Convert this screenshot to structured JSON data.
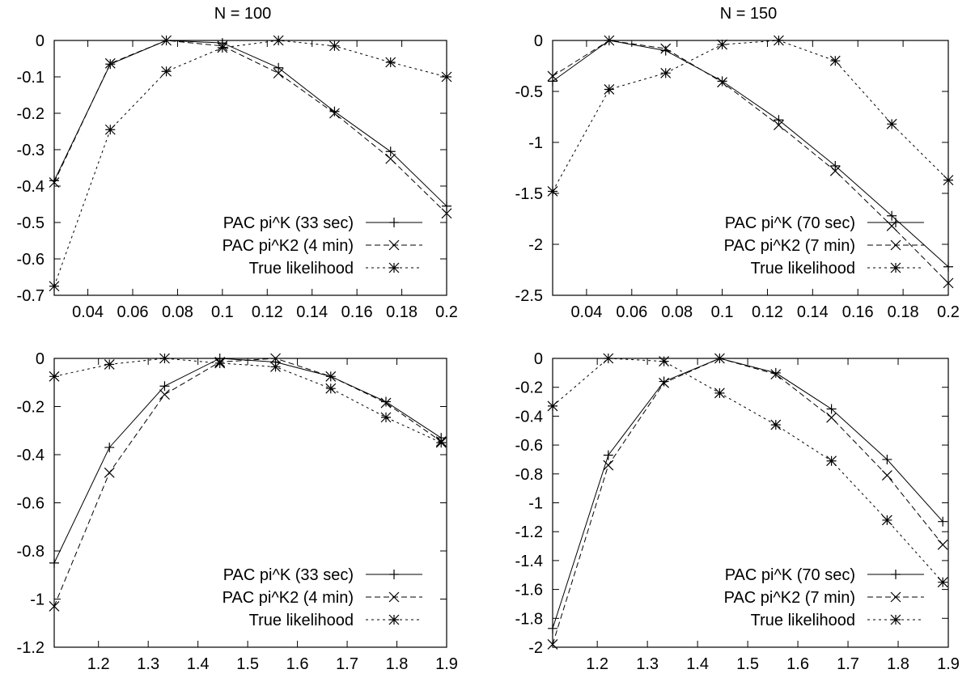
{
  "colors": {
    "line": "#000000",
    "background": "#ffffff"
  },
  "chart_data": [
    {
      "type": "line",
      "title": "N = 100",
      "xlabel": "",
      "ylabel": "",
      "xlim": [
        0.025,
        0.2
      ],
      "ylim": [
        -0.7,
        0
      ],
      "xticks": [
        0.04,
        0.06,
        0.08,
        0.1,
        0.12,
        0.14,
        0.16,
        0.18,
        0.2
      ],
      "xtick_labels": [
        "0.04",
        "0.06",
        "0.08",
        "0.1",
        "0.12",
        "0.14",
        "0.16",
        "0.18",
        "0.2"
      ],
      "yticks": [
        0,
        -0.1,
        -0.2,
        -0.3,
        -0.4,
        -0.5,
        -0.6,
        -0.7
      ],
      "ytick_labels": [
        "0",
        "-0.1",
        "-0.2",
        "-0.3",
        "-0.4",
        "-0.5",
        "-0.6",
        "-0.7"
      ],
      "legend": "bottom-right",
      "grid": false,
      "x": [
        0.025,
        0.05,
        0.075,
        0.1,
        0.125,
        0.15,
        0.175,
        0.2
      ],
      "series": [
        {
          "name": "PAC pi^K (33 sec)",
          "marker": "plus",
          "dash": "solid",
          "values": [
            -0.385,
            -0.065,
            0,
            -0.007,
            -0.075,
            -0.195,
            -0.305,
            -0.455
          ]
        },
        {
          "name": "PAC pi^K2 (4 min)",
          "marker": "cross",
          "dash": "dashed",
          "values": [
            -0.39,
            -0.063,
            0,
            -0.015,
            -0.09,
            -0.2,
            -0.325,
            -0.475
          ]
        },
        {
          "name": "True likelihood",
          "marker": "star",
          "dash": "dotted",
          "values": [
            -0.675,
            -0.245,
            -0.085,
            -0.02,
            0,
            -0.015,
            -0.06,
            -0.1
          ]
        }
      ]
    },
    {
      "type": "line",
      "title": "N = 150",
      "xlabel": "",
      "ylabel": "",
      "xlim": [
        0.025,
        0.2
      ],
      "ylim": [
        -2.5,
        0
      ],
      "xticks": [
        0.04,
        0.06,
        0.08,
        0.1,
        0.12,
        0.14,
        0.16,
        0.18,
        0.2
      ],
      "xtick_labels": [
        "0.04",
        "0.06",
        "0.08",
        "0.1",
        "0.12",
        "0.14",
        "0.16",
        "0.18",
        "0.2"
      ],
      "yticks": [
        0,
        -0.5,
        -1,
        -1.5,
        -2,
        -2.5
      ],
      "ytick_labels": [
        "0",
        "-0.5",
        "-1",
        "-1.5",
        "-2",
        "-2.5"
      ],
      "legend": "bottom-right",
      "grid": false,
      "x": [
        0.025,
        0.05,
        0.075,
        0.1,
        0.125,
        0.15,
        0.175,
        0.2
      ],
      "series": [
        {
          "name": "PAC pi^K (70 sec)",
          "marker": "plus",
          "dash": "solid",
          "values": [
            -0.4,
            0,
            -0.1,
            -0.4,
            -0.78,
            -1.23,
            -1.72,
            -2.22
          ]
        },
        {
          "name": "PAC pi^K2 (7 min)",
          "marker": "cross",
          "dash": "dashed",
          "values": [
            -0.35,
            0,
            -0.08,
            -0.41,
            -0.83,
            -1.28,
            -1.82,
            -2.38
          ]
        },
        {
          "name": "True likelihood",
          "marker": "star",
          "dash": "dotted",
          "values": [
            -1.48,
            -0.48,
            -0.32,
            -0.04,
            0,
            -0.2,
            -0.82,
            -1.37
          ]
        }
      ]
    },
    {
      "type": "line",
      "title": "",
      "xlabel": "",
      "ylabel": "",
      "xlim": [
        1.111,
        1.9
      ],
      "ylim": [
        -1.2,
        0
      ],
      "xticks": [
        1.2,
        1.3,
        1.4,
        1.5,
        1.6,
        1.7,
        1.8,
        1.9
      ],
      "xtick_labels": [
        "1.2",
        "1.3",
        "1.4",
        "1.5",
        "1.6",
        "1.7",
        "1.8",
        "1.9"
      ],
      "yticks": [
        0,
        -0.2,
        -0.4,
        -0.6,
        -0.8,
        -1,
        -1.2
      ],
      "ytick_labels": [
        "0",
        "-0.2",
        "-0.4",
        "-0.6",
        "-0.8",
        "-1",
        "-1.2"
      ],
      "legend": "bottom-right",
      "grid": false,
      "x": [
        1.111,
        1.222,
        1.333,
        1.444,
        1.556,
        1.667,
        1.778,
        1.889
      ],
      "series": [
        {
          "name": "PAC pi^K (33 sec)",
          "marker": "plus",
          "dash": "solid",
          "values": [
            -0.85,
            -0.37,
            -0.115,
            0,
            -0.015,
            -0.075,
            -0.18,
            -0.33
          ]
        },
        {
          "name": "PAC pi^K2 (4 min)",
          "marker": "cross",
          "dash": "dashed",
          "values": [
            -1.03,
            -0.475,
            -0.15,
            -0.015,
            0,
            -0.075,
            -0.185,
            -0.345
          ]
        },
        {
          "name": "True likelihood",
          "marker": "star",
          "dash": "dotted",
          "values": [
            -0.075,
            -0.025,
            0,
            -0.02,
            -0.035,
            -0.125,
            -0.245,
            -0.35
          ]
        }
      ]
    },
    {
      "type": "line",
      "title": "",
      "xlabel": "",
      "ylabel": "",
      "xlim": [
        1.111,
        1.9
      ],
      "ylim": [
        -2,
        0
      ],
      "xticks": [
        1.2,
        1.3,
        1.4,
        1.5,
        1.6,
        1.7,
        1.8,
        1.9
      ],
      "xtick_labels": [
        "1.2",
        "1.3",
        "1.4",
        "1.5",
        "1.6",
        "1.7",
        "1.8",
        "1.9"
      ],
      "yticks": [
        0,
        -0.2,
        -0.4,
        -0.6,
        -0.8,
        -1,
        -1.2,
        -1.4,
        -1.6,
        -1.8,
        -2
      ],
      "ytick_labels": [
        "0",
        "-0.2",
        "-0.4",
        "-0.6",
        "-0.8",
        "-1",
        "-1.2",
        "-1.4",
        "-1.6",
        "-1.8",
        "-2"
      ],
      "legend": "bottom-right",
      "grid": false,
      "x": [
        1.111,
        1.222,
        1.333,
        1.444,
        1.556,
        1.667,
        1.778,
        1.889
      ],
      "series": [
        {
          "name": "PAC pi^K (70 sec)",
          "marker": "plus",
          "dash": "solid",
          "values": [
            -1.87,
            -0.67,
            -0.16,
            0,
            -0.1,
            -0.35,
            -0.7,
            -1.13
          ]
        },
        {
          "name": "PAC pi^K2 (7 min)",
          "marker": "cross",
          "dash": "dashed",
          "values": [
            -1.98,
            -0.74,
            -0.17,
            0,
            -0.11,
            -0.41,
            -0.81,
            -1.29
          ]
        },
        {
          "name": "True likelihood",
          "marker": "star",
          "dash": "dotted",
          "values": [
            -0.33,
            0,
            -0.02,
            -0.24,
            -0.46,
            -0.71,
            -1.12,
            -1.55
          ]
        }
      ]
    }
  ]
}
